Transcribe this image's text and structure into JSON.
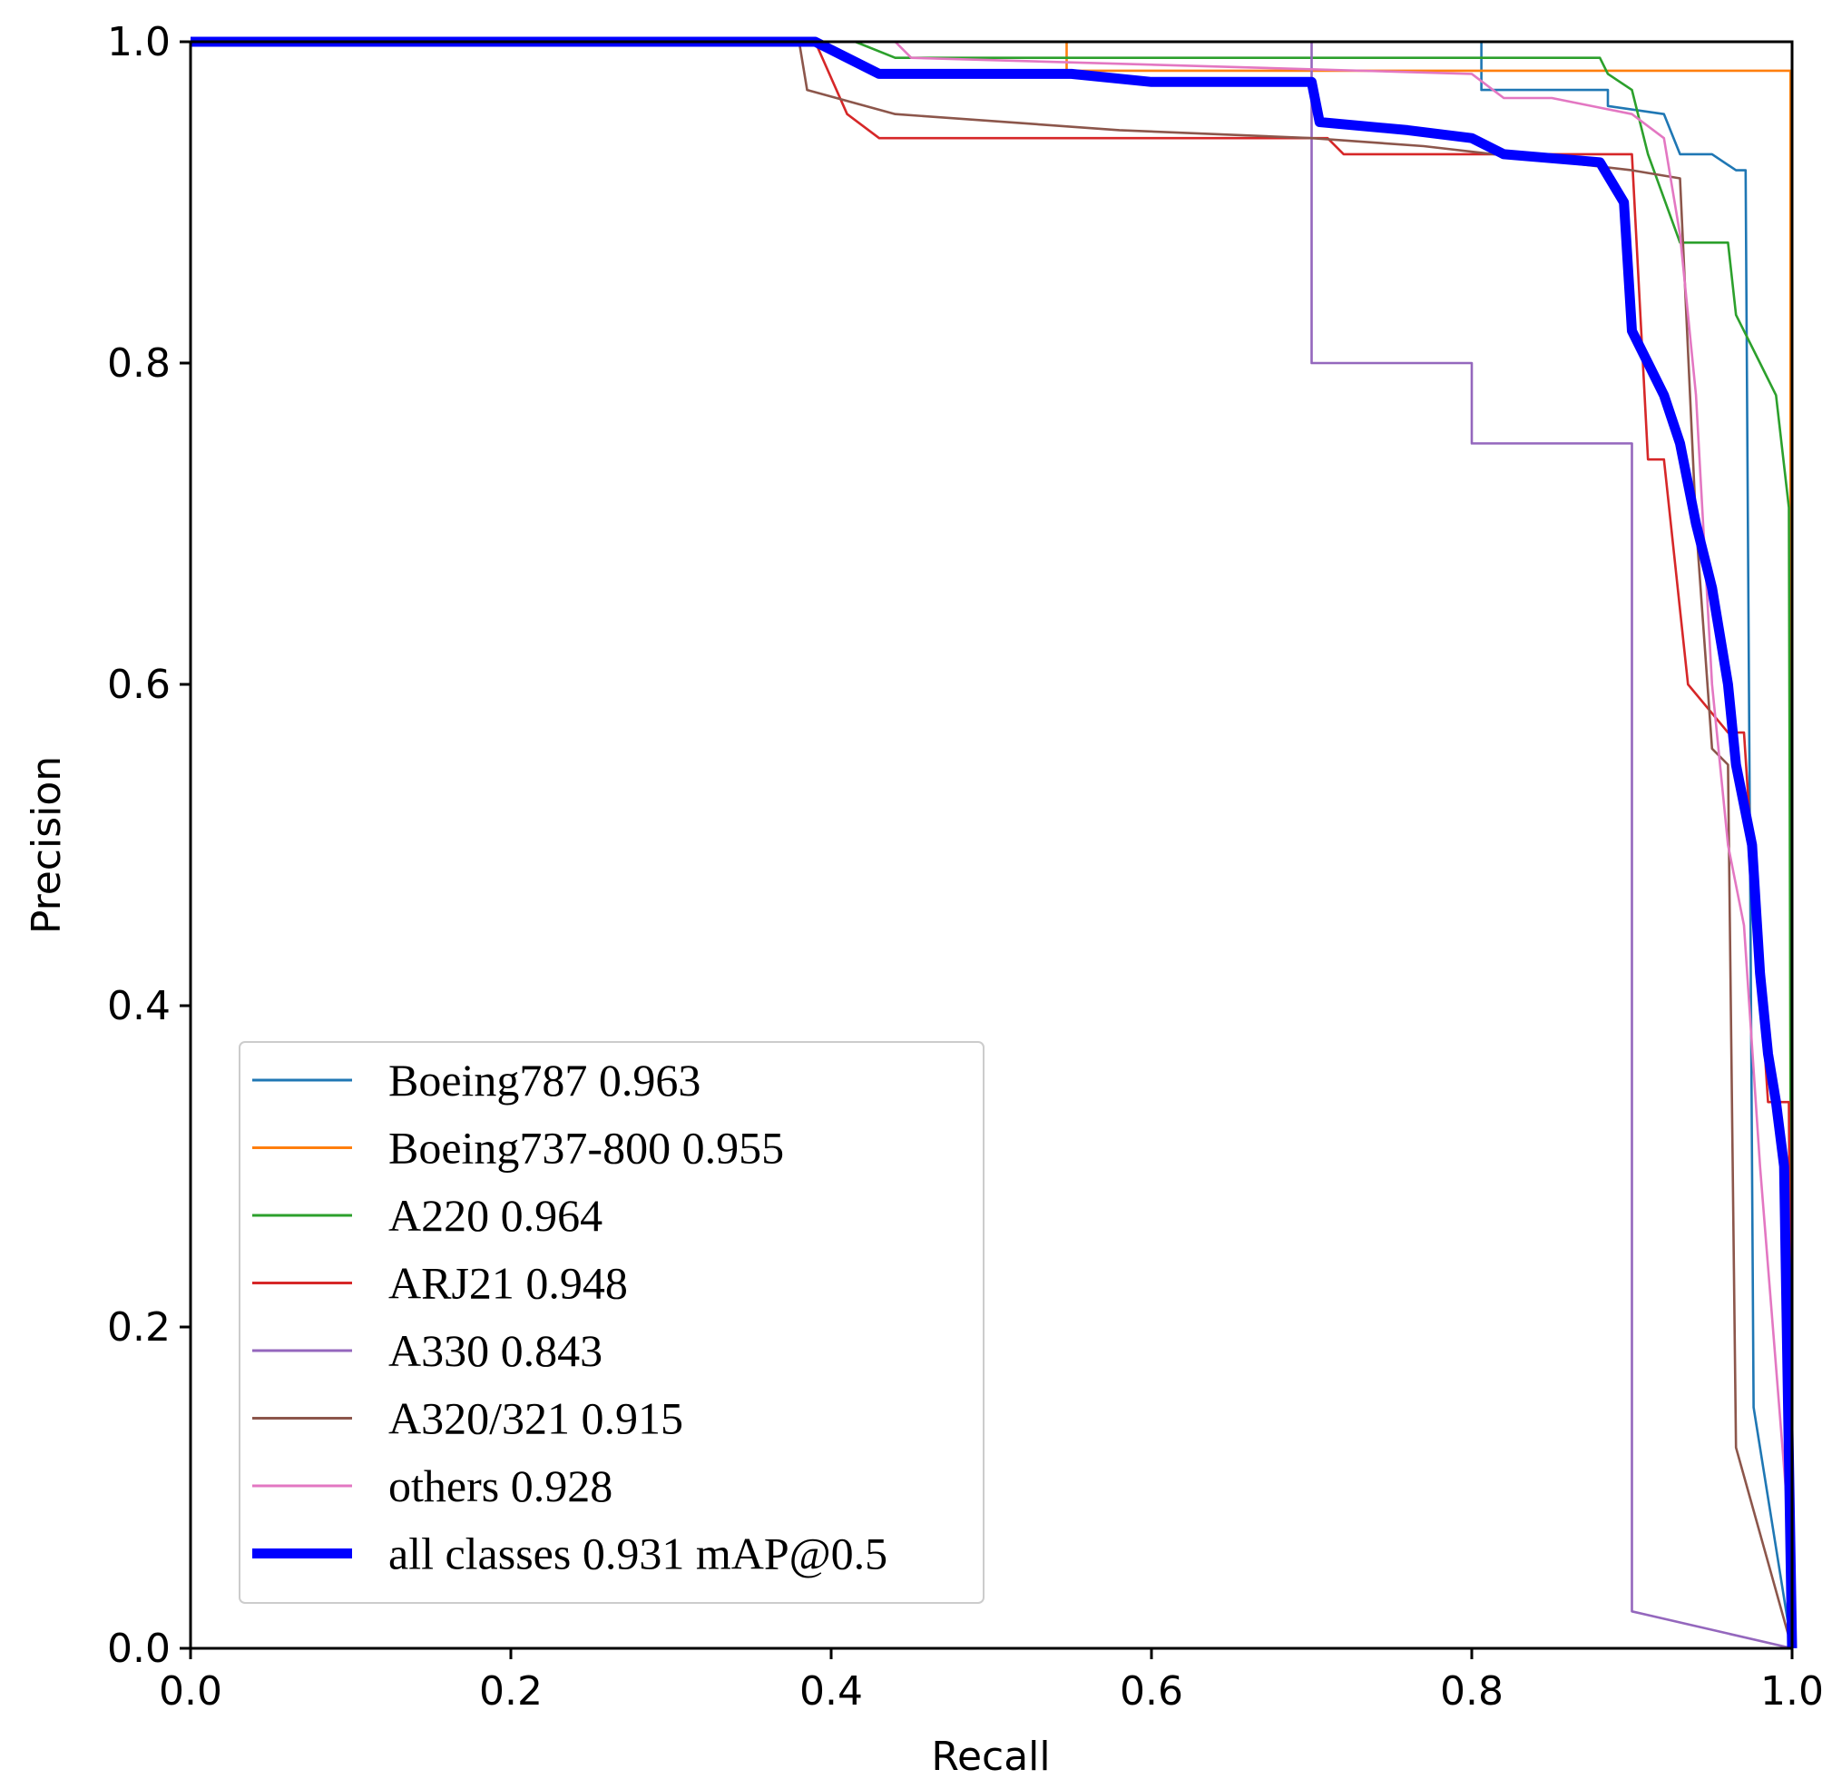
{
  "chart_data": {
    "type": "line",
    "xlabel": "Recall",
    "ylabel": "Precision",
    "xlim": [
      0,
      1
    ],
    "ylim": [
      0,
      1
    ],
    "xticks": [
      "0.0",
      "0.2",
      "0.4",
      "0.6",
      "0.8",
      "1.0"
    ],
    "yticks": [
      "0.0",
      "0.2",
      "0.4",
      "0.6",
      "0.8",
      "1.0"
    ],
    "legend_position": "lower-left",
    "series": [
      {
        "name": "Boeing787",
        "value": "0.963",
        "label": "Boeing787 0.963",
        "color": "#1f77b4",
        "x": [
          0,
          0.39,
          0.806,
          0.806,
          0.811,
          0.885,
          0.885,
          0.92,
          0.93,
          0.95,
          0.965,
          0.971,
          0.976,
          1.0
        ],
        "y": [
          1.0,
          1.0,
          1.0,
          0.97,
          0.97,
          0.97,
          0.96,
          0.955,
          0.93,
          0.93,
          0.92,
          0.92,
          0.15,
          0.0
        ]
      },
      {
        "name": "Boeing737-800",
        "value": "0.955",
        "label": "Boeing737-800 0.955",
        "color": "#ff7f0e",
        "x": [
          0,
          0.547,
          0.547,
          0.999,
          0.999,
          1.0
        ],
        "y": [
          1.0,
          1.0,
          0.982,
          0.982,
          0.0,
          0.0
        ]
      },
      {
        "name": "A220",
        "value": "0.964",
        "label": "A220 0.964",
        "color": "#2ca02c",
        "x": [
          0,
          0.415,
          0.44,
          0.88,
          0.885,
          0.9,
          0.91,
          0.93,
          0.96,
          0.965,
          0.98,
          0.99,
          0.998,
          1.0
        ],
        "y": [
          1.0,
          1.0,
          0.99,
          0.99,
          0.98,
          0.97,
          0.93,
          0.875,
          0.875,
          0.83,
          0.8,
          0.78,
          0.71,
          0.0
        ]
      },
      {
        "name": "ARJ21",
        "value": "0.948",
        "label": "ARJ21 0.948",
        "color": "#d62728",
        "x": [
          0,
          0.39,
          0.41,
          0.43,
          0.71,
          0.72,
          0.9,
          0.91,
          0.92,
          0.935,
          0.96,
          0.97,
          0.985,
          0.998,
          1.0
        ],
        "y": [
          1.0,
          1.0,
          0.955,
          0.94,
          0.94,
          0.93,
          0.93,
          0.74,
          0.74,
          0.6,
          0.57,
          0.57,
          0.34,
          0.34,
          0.0
        ]
      },
      {
        "name": "A330",
        "value": "0.843",
        "label": "A330 0.843",
        "color": "#9467bd",
        "x": [
          0,
          0.7,
          0.7,
          0.8,
          0.8,
          0.9,
          0.9,
          1.0
        ],
        "y": [
          1.0,
          1.0,
          0.8,
          0.8,
          0.75,
          0.75,
          0.023,
          0.0
        ]
      },
      {
        "name": "A320/321",
        "value": "0.915",
        "label": "A320/321 0.915",
        "color": "#8c564b",
        "x": [
          0,
          0.38,
          0.385,
          0.44,
          0.58,
          0.7,
          0.77,
          0.9,
          0.93,
          0.94,
          0.95,
          0.96,
          0.965,
          1.0
        ],
        "y": [
          1.0,
          1.0,
          0.97,
          0.955,
          0.945,
          0.94,
          0.935,
          0.92,
          0.915,
          0.7,
          0.56,
          0.55,
          0.125,
          0.0
        ]
      },
      {
        "name": "others",
        "value": "0.928",
        "label": "others 0.928",
        "color": "#e377c2",
        "x": [
          0,
          0.44,
          0.45,
          0.8,
          0.82,
          0.85,
          0.9,
          0.92,
          0.93,
          0.94,
          0.95,
          0.955,
          0.96,
          0.97,
          0.98,
          1.0
        ],
        "y": [
          1.0,
          1.0,
          0.99,
          0.98,
          0.965,
          0.965,
          0.955,
          0.94,
          0.88,
          0.78,
          0.6,
          0.55,
          0.5,
          0.45,
          0.3,
          0.05
        ]
      },
      {
        "name": "all classes",
        "value": "0.931 mAP@0.5",
        "label": "all classes 0.931 mAP@0.5",
        "color": "#0000ff",
        "thick": true,
        "x": [
          0,
          0.39,
          0.41,
          0.43,
          0.5,
          0.55,
          0.6,
          0.69,
          0.7,
          0.705,
          0.76,
          0.8,
          0.82,
          0.88,
          0.895,
          0.9,
          0.91,
          0.92,
          0.93,
          0.94,
          0.95,
          0.96,
          0.965,
          0.975,
          0.98,
          0.985,
          0.99,
          0.995,
          1.0
        ],
        "y": [
          1.0,
          1.0,
          0.99,
          0.98,
          0.98,
          0.98,
          0.975,
          0.975,
          0.975,
          0.95,
          0.945,
          0.94,
          0.93,
          0.925,
          0.9,
          0.82,
          0.8,
          0.78,
          0.75,
          0.7,
          0.66,
          0.6,
          0.55,
          0.5,
          0.42,
          0.37,
          0.34,
          0.3,
          0.0
        ]
      }
    ]
  }
}
